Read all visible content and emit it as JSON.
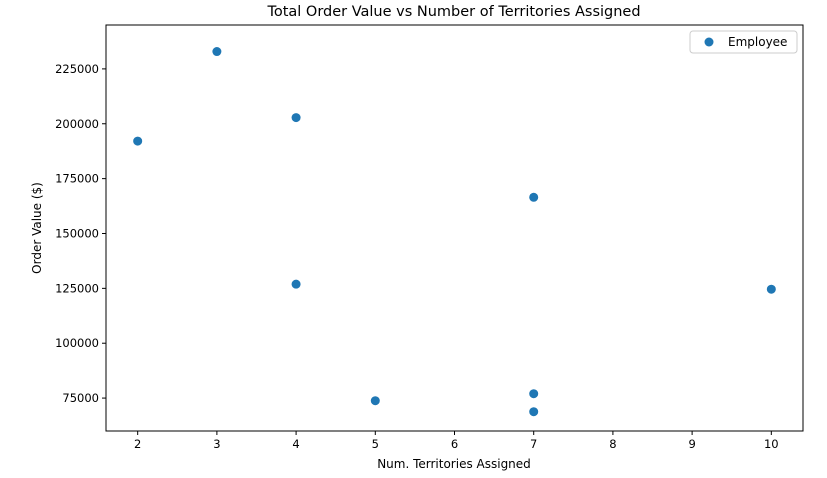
{
  "chart_data": {
    "type": "scatter",
    "title": "Total Order Value vs Number of Territories Assigned",
    "xlabel": "Num. Territories Assigned",
    "ylabel": "Order Value ($)",
    "xlim": [
      1.6,
      10.4
    ],
    "ylim": [
      60000,
      245000
    ],
    "xticks": [
      2,
      3,
      4,
      5,
      6,
      7,
      8,
      9,
      10
    ],
    "yticks": [
      75000,
      100000,
      125000,
      150000,
      175000,
      200000,
      225000
    ],
    "grid": false,
    "legend_position": "top-right",
    "series": [
      {
        "name": "Employee",
        "color": "#1f77b4",
        "x": [
          3,
          4,
          2,
          7,
          4,
          10,
          7,
          5,
          7
        ],
        "y": [
          232900,
          202800,
          192100,
          166500,
          126900,
          124600,
          77000,
          73800,
          68800
        ]
      }
    ]
  }
}
